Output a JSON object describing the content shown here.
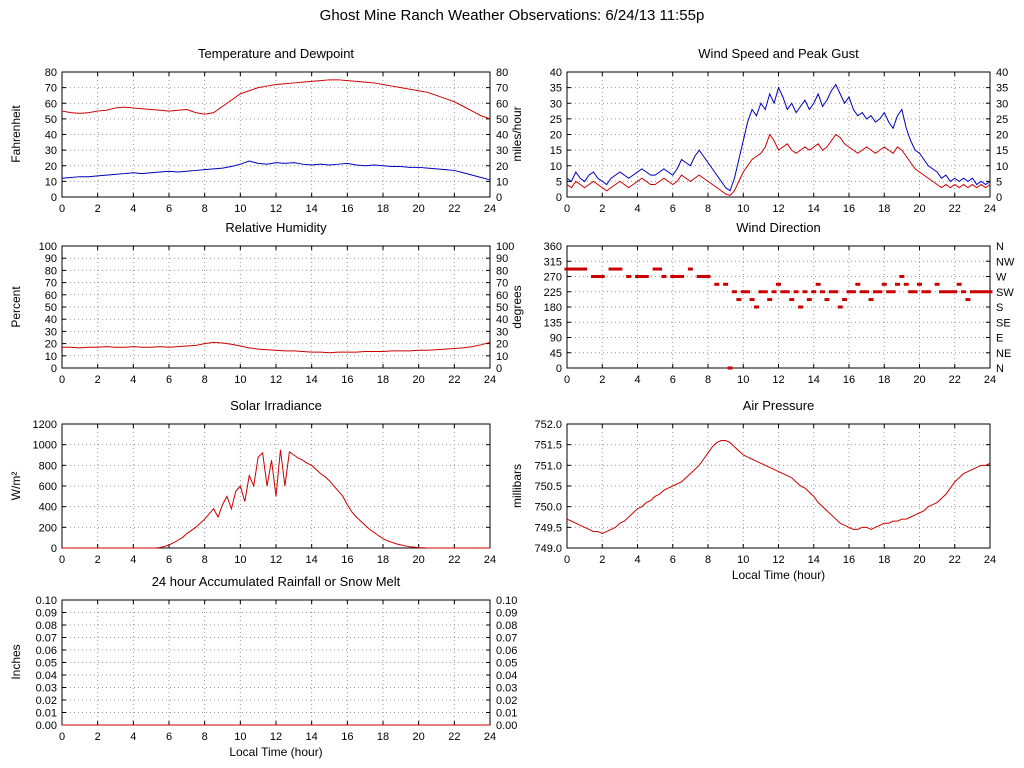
{
  "page_title": "Ghost Mine Ranch Weather Observations: 6/24/13 11:55p",
  "chart_data": [
    {
      "id": "temperature",
      "title": "Temperature and Dewpoint",
      "type": "line",
      "ylabel": "Fahrenheit",
      "ylim": [
        0,
        80
      ],
      "yticks": [
        0,
        10,
        20,
        30,
        40,
        50,
        60,
        70,
        80
      ],
      "xlim": [
        0,
        24
      ],
      "xticks": [
        0,
        2,
        4,
        6,
        8,
        10,
        12,
        14,
        16,
        18,
        20,
        22,
        24
      ],
      "right_labels": true,
      "series": [
        {
          "name": "temperature",
          "color": "#cc0000",
          "x_start": 0,
          "x_step": 0.5,
          "values": [
            55,
            54,
            53.5,
            54,
            55,
            55.5,
            57,
            57.5,
            57,
            56.5,
            56,
            55.5,
            55,
            55.5,
            56,
            54,
            53,
            54,
            58,
            62,
            66,
            68,
            70,
            71,
            72,
            72.5,
            73,
            73.5,
            74,
            74.5,
            75,
            75,
            74.5,
            74,
            73.5,
            73,
            72,
            71,
            70,
            69,
            68,
            67,
            65,
            63,
            61,
            58,
            55,
            52,
            50
          ]
        },
        {
          "name": "dewpoint",
          "color": "#0000bb",
          "x_start": 0,
          "x_step": 0.5,
          "values": [
            12,
            12.5,
            13,
            13,
            13.5,
            14,
            14.5,
            15,
            15.5,
            15,
            15.5,
            16,
            16.5,
            16,
            16.5,
            17,
            17.5,
            18,
            18.5,
            19.5,
            21,
            23,
            21.5,
            21,
            22,
            21.5,
            22,
            21,
            20.5,
            21,
            20.5,
            21,
            21.5,
            20.5,
            20,
            20.5,
            20,
            19.5,
            19.5,
            19,
            19,
            18.5,
            18,
            17.5,
            17,
            15.5,
            14,
            12.5,
            11
          ]
        }
      ]
    },
    {
      "id": "wind",
      "title": "Wind Speed and Peak Gust",
      "type": "line",
      "ylabel": "miles/hour",
      "ylim": [
        0,
        40
      ],
      "yticks": [
        0,
        5,
        10,
        15,
        20,
        25,
        30,
        35,
        40
      ],
      "xlim": [
        0,
        24
      ],
      "xticks": [
        0,
        2,
        4,
        6,
        8,
        10,
        12,
        14,
        16,
        18,
        20,
        22,
        24
      ],
      "right_labels": true,
      "series": [
        {
          "name": "peak-gust",
          "color": "#0000bb",
          "x_start": 0,
          "x_step": 0.25,
          "values": [
            6,
            5,
            8,
            6,
            5,
            7,
            8,
            6,
            5,
            4,
            6,
            7,
            8,
            7,
            6,
            7,
            8,
            9,
            8,
            7,
            7,
            8,
            9,
            8,
            7,
            9,
            12,
            11,
            10,
            13,
            15,
            13,
            11,
            9,
            7,
            5,
            3,
            2,
            6,
            12,
            18,
            24,
            28,
            26,
            30,
            28,
            33,
            30,
            35,
            32,
            28,
            30,
            27,
            29,
            31,
            28,
            30,
            33,
            29,
            31,
            34,
            36,
            33,
            30,
            32,
            28,
            26,
            27,
            25,
            26,
            24,
            25,
            27,
            24,
            22,
            26,
            28,
            22,
            18,
            15,
            14,
            12,
            10,
            9,
            8,
            6,
            7,
            5,
            6,
            5,
            6,
            5,
            6,
            4,
            5,
            4,
            5
          ]
        },
        {
          "name": "wind-speed",
          "color": "#cc0000",
          "x_start": 0,
          "x_step": 0.25,
          "values": [
            4,
            3,
            5,
            4,
            3,
            4,
            5,
            4,
            3,
            2,
            3,
            4,
            5,
            4,
            3,
            4,
            5,
            6,
            5,
            4,
            4,
            5,
            6,
            5,
            4,
            5,
            7,
            6,
            5,
            6,
            7,
            6,
            5,
            4,
            3,
            2,
            1,
            0.5,
            2,
            5,
            8,
            10,
            12,
            13,
            14,
            16,
            20,
            18,
            15,
            16,
            17,
            15,
            14,
            15,
            16,
            15,
            16,
            17,
            15,
            16,
            18,
            20,
            19,
            17,
            16,
            15,
            14,
            15,
            16,
            15,
            14,
            15,
            16,
            15,
            14,
            16,
            15,
            13,
            11,
            9,
            8,
            7,
            6,
            5,
            4,
            3,
            4,
            3,
            4,
            3,
            4,
            3,
            4,
            3,
            4,
            3,
            4
          ]
        }
      ]
    },
    {
      "id": "humidity",
      "title": "Relative Humidity",
      "type": "line",
      "ylabel": "Percent",
      "ylim": [
        0,
        100
      ],
      "yticks": [
        0,
        10,
        20,
        30,
        40,
        50,
        60,
        70,
        80,
        90,
        100
      ],
      "xlim": [
        0,
        24
      ],
      "xticks": [
        0,
        2,
        4,
        6,
        8,
        10,
        12,
        14,
        16,
        18,
        20,
        22,
        24
      ],
      "right_labels": true,
      "series": [
        {
          "name": "relative-humidity",
          "color": "#cc0000",
          "x_start": 0,
          "x_step": 0.5,
          "values": [
            17,
            17,
            16.5,
            17,
            17,
            17.5,
            17,
            17,
            17.5,
            17,
            17,
            17.5,
            17,
            17.5,
            18,
            18.5,
            20,
            21,
            20.5,
            19.5,
            18,
            16.5,
            15.5,
            15,
            14.5,
            14,
            14,
            13.5,
            13,
            13,
            12.5,
            13,
            13,
            13,
            13.5,
            13.5,
            13.5,
            14,
            14,
            14,
            14.5,
            14.5,
            15,
            15.5,
            16,
            16.5,
            17.5,
            19,
            21
          ]
        }
      ]
    },
    {
      "id": "wind-direction",
      "title": "Wind Direction",
      "type": "scatter",
      "ylabel": "degrees",
      "color": "#cc0000",
      "ylim": [
        0,
        360
      ],
      "yticks": [
        0,
        45,
        90,
        135,
        180,
        225,
        270,
        315,
        360
      ],
      "right_tick_labels": [
        "N",
        "NE",
        "E",
        "SE",
        "S",
        "SW",
        "W",
        "NW",
        "N"
      ],
      "xlim": [
        0,
        24
      ],
      "xticks": [
        0,
        2,
        4,
        6,
        8,
        10,
        12,
        14,
        16,
        18,
        20,
        22,
        24
      ],
      "points": [
        [
          0,
          292
        ],
        [
          0.25,
          292
        ],
        [
          0.5,
          292
        ],
        [
          0.75,
          292
        ],
        [
          1,
          292
        ],
        [
          1.5,
          270
        ],
        [
          1.75,
          270
        ],
        [
          2,
          270
        ],
        [
          2.5,
          292
        ],
        [
          2.75,
          292
        ],
        [
          3,
          292
        ],
        [
          3.5,
          270
        ],
        [
          4,
          270
        ],
        [
          4.25,
          270
        ],
        [
          4.5,
          270
        ],
        [
          5,
          292
        ],
        [
          5.25,
          292
        ],
        [
          5.5,
          270
        ],
        [
          6,
          270
        ],
        [
          6.25,
          270
        ],
        [
          6.5,
          270
        ],
        [
          7,
          292
        ],
        [
          7.5,
          270
        ],
        [
          7.75,
          270
        ],
        [
          8,
          270
        ],
        [
          8.5,
          247
        ],
        [
          9,
          247
        ],
        [
          9.25,
          0
        ],
        [
          9.5,
          225
        ],
        [
          9.75,
          202
        ],
        [
          10,
          225
        ],
        [
          10.25,
          225
        ],
        [
          10.5,
          202
        ],
        [
          10.75,
          180
        ],
        [
          11,
          225
        ],
        [
          11.25,
          225
        ],
        [
          11.5,
          202
        ],
        [
          11.75,
          225
        ],
        [
          12,
          247
        ],
        [
          12.25,
          225
        ],
        [
          12.5,
          225
        ],
        [
          12.75,
          202
        ],
        [
          13,
          225
        ],
        [
          13.25,
          180
        ],
        [
          13.5,
          225
        ],
        [
          13.75,
          202
        ],
        [
          14,
          225
        ],
        [
          14.25,
          247
        ],
        [
          14.5,
          225
        ],
        [
          14.75,
          202
        ],
        [
          15,
          225
        ],
        [
          15.25,
          225
        ],
        [
          15.5,
          180
        ],
        [
          15.75,
          202
        ],
        [
          16,
          225
        ],
        [
          16.25,
          225
        ],
        [
          16.5,
          247
        ],
        [
          16.75,
          225
        ],
        [
          17,
          225
        ],
        [
          17.25,
          202
        ],
        [
          17.5,
          225
        ],
        [
          17.75,
          225
        ],
        [
          18,
          247
        ],
        [
          18.25,
          225
        ],
        [
          18.5,
          225
        ],
        [
          18.75,
          247
        ],
        [
          19,
          270
        ],
        [
          19.25,
          247
        ],
        [
          19.5,
          225
        ],
        [
          19.75,
          225
        ],
        [
          20,
          247
        ],
        [
          20.25,
          225
        ],
        [
          20.5,
          225
        ],
        [
          21,
          247
        ],
        [
          21.25,
          225
        ],
        [
          21.5,
          225
        ],
        [
          21.75,
          225
        ],
        [
          22,
          225
        ],
        [
          22.25,
          247
        ],
        [
          22.5,
          225
        ],
        [
          22.75,
          202
        ],
        [
          23,
          225
        ],
        [
          23.25,
          225
        ],
        [
          23.5,
          225
        ],
        [
          23.75,
          225
        ],
        [
          24,
          225
        ]
      ]
    },
    {
      "id": "solar",
      "title": "Solar Irradiance",
      "type": "line",
      "ylabel": "W/m²",
      "ylim": [
        0,
        1200
      ],
      "yticks": [
        0,
        200,
        400,
        600,
        800,
        1000,
        1200
      ],
      "xlim": [
        0,
        24
      ],
      "xticks": [
        0,
        2,
        4,
        6,
        8,
        10,
        12,
        14,
        16,
        18,
        20,
        22,
        24
      ],
      "right_labels": false,
      "series": [
        {
          "name": "solar-irradiance",
          "color": "#cc0000",
          "x_start": 0,
          "x_step": 0.25,
          "values": [
            0,
            0,
            0,
            0,
            0,
            0,
            0,
            0,
            0,
            0,
            0,
            0,
            0,
            0,
            0,
            0,
            0,
            0,
            0,
            0,
            0,
            0,
            5,
            15,
            30,
            50,
            75,
            100,
            140,
            170,
            200,
            240,
            280,
            330,
            380,
            300,
            420,
            500,
            380,
            550,
            600,
            450,
            700,
            600,
            880,
            920,
            600,
            850,
            500,
            950,
            600,
            930,
            900,
            870,
            850,
            820,
            800,
            760,
            720,
            690,
            650,
            600,
            550,
            500,
            420,
            350,
            300,
            260,
            220,
            180,
            150,
            120,
            90,
            70,
            55,
            40,
            30,
            20,
            12,
            8,
            4,
            2,
            0,
            0,
            0,
            0,
            0,
            0,
            0,
            0,
            0,
            0,
            0,
            0,
            0,
            0,
            0
          ]
        }
      ]
    },
    {
      "id": "pressure",
      "title": "Air Pressure",
      "type": "line",
      "ylabel": "millibars",
      "xlabel": "Local Time (hour)",
      "ylim": [
        749.0,
        752.0
      ],
      "yticks": [
        749.0,
        749.5,
        750.0,
        750.5,
        751.0,
        751.5,
        752.0
      ],
      "ytick_decimals": 1,
      "xlim": [
        0,
        24
      ],
      "xticks": [
        0,
        2,
        4,
        6,
        8,
        10,
        12,
        14,
        16,
        18,
        20,
        22,
        24
      ],
      "right_labels": false,
      "series": [
        {
          "name": "air-pressure",
          "color": "#cc0000",
          "x_start": 0,
          "x_step": 0.25,
          "values": [
            749.7,
            749.65,
            749.6,
            749.55,
            749.5,
            749.45,
            749.4,
            749.4,
            749.35,
            749.4,
            749.45,
            749.5,
            749.6,
            749.65,
            749.75,
            749.85,
            749.95,
            750.0,
            750.1,
            750.15,
            750.25,
            750.3,
            750.4,
            750.45,
            750.5,
            750.55,
            750.6,
            750.7,
            750.8,
            750.9,
            751.0,
            751.15,
            751.3,
            751.45,
            751.55,
            751.6,
            751.6,
            751.55,
            751.45,
            751.35,
            751.25,
            751.2,
            751.15,
            751.1,
            751.05,
            751.0,
            750.95,
            750.9,
            750.85,
            750.8,
            750.75,
            750.7,
            750.6,
            750.5,
            750.45,
            750.35,
            750.25,
            750.1,
            750.0,
            749.9,
            749.8,
            749.7,
            749.6,
            749.55,
            749.5,
            749.45,
            749.45,
            749.5,
            749.5,
            749.45,
            749.5,
            749.55,
            749.6,
            749.6,
            749.65,
            749.65,
            749.7,
            749.7,
            749.75,
            749.8,
            749.85,
            749.9,
            750.0,
            750.05,
            750.1,
            750.2,
            750.3,
            750.45,
            750.6,
            750.7,
            750.8,
            750.85,
            750.9,
            750.95,
            751.0,
            751.0,
            751.05
          ]
        }
      ]
    },
    {
      "id": "rain",
      "title": "24 hour Accumulated Rainfall or Snow Melt",
      "type": "line",
      "ylabel": "Inches",
      "xlabel": "Local Time (hour)",
      "ylim": [
        0,
        0.1
      ],
      "yticks": [
        0,
        0.01,
        0.02,
        0.03,
        0.04,
        0.05,
        0.06,
        0.07,
        0.08,
        0.09,
        0.1
      ],
      "ytick_decimals": 2,
      "xlim": [
        0,
        24
      ],
      "xticks": [
        0,
        2,
        4,
        6,
        8,
        10,
        12,
        14,
        16,
        18,
        20,
        22,
        24
      ],
      "right_labels": true,
      "series": [
        {
          "name": "rainfall",
          "color": "#cc0000",
          "x_start": 0,
          "x_step": 24,
          "values": [
            0,
            0
          ]
        }
      ]
    }
  ]
}
